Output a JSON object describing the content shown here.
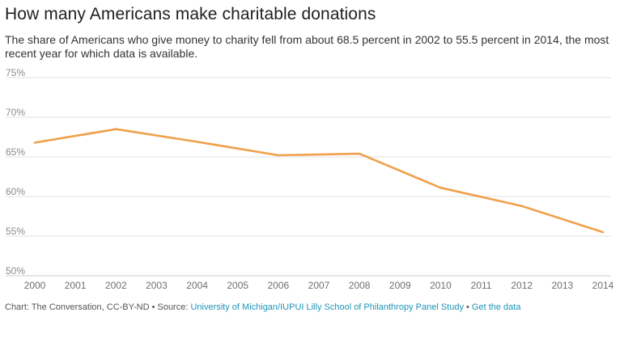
{
  "colors": {
    "line": "#f0a04b",
    "link": "#1f94b8"
  },
  "chart_data": {
    "type": "line",
    "title": "How many Americans make charitable donations",
    "subtitle": "The share of Americans who give money to charity fell from about 68.5 percent in 2002 to 55.5 percent in 2014, the most recent year for which data is available.",
    "xlabel": "",
    "ylabel": "",
    "x": [
      2000,
      2002,
      2004,
      2006,
      2008,
      2010,
      2012,
      2014
    ],
    "series": [
      {
        "name": "Share of Americans who give to charity",
        "values": [
          66.8,
          68.5,
          66.9,
          65.2,
          65.4,
          61.1,
          58.8,
          55.5
        ]
      }
    ],
    "xticks": [
      "2000",
      "2001",
      "2002",
      "2003",
      "2004",
      "2005",
      "2006",
      "2007",
      "2008",
      "2009",
      "2010",
      "2011",
      "2012",
      "2013",
      "2014"
    ],
    "yticks": [
      {
        "value": 75,
        "label": "75%"
      },
      {
        "value": 70,
        "label": "70%"
      },
      {
        "value": 65,
        "label": "65%"
      },
      {
        "value": 60,
        "label": "60%"
      },
      {
        "value": 55,
        "label": "55%"
      },
      {
        "value": 50,
        "label": "50%"
      }
    ],
    "xlim": [
      2000,
      2014
    ],
    "ylim": [
      50,
      75
    ],
    "grid": true,
    "legend": "none"
  },
  "footer": {
    "credit": "Chart: The Conversation, CC-BY-ND",
    "separator": " • ",
    "source_prefix": "Source: ",
    "source_link": "University of Michigan/IUPUI Lilly School of Philanthropy Panel Study",
    "data_link": "Get the data"
  }
}
